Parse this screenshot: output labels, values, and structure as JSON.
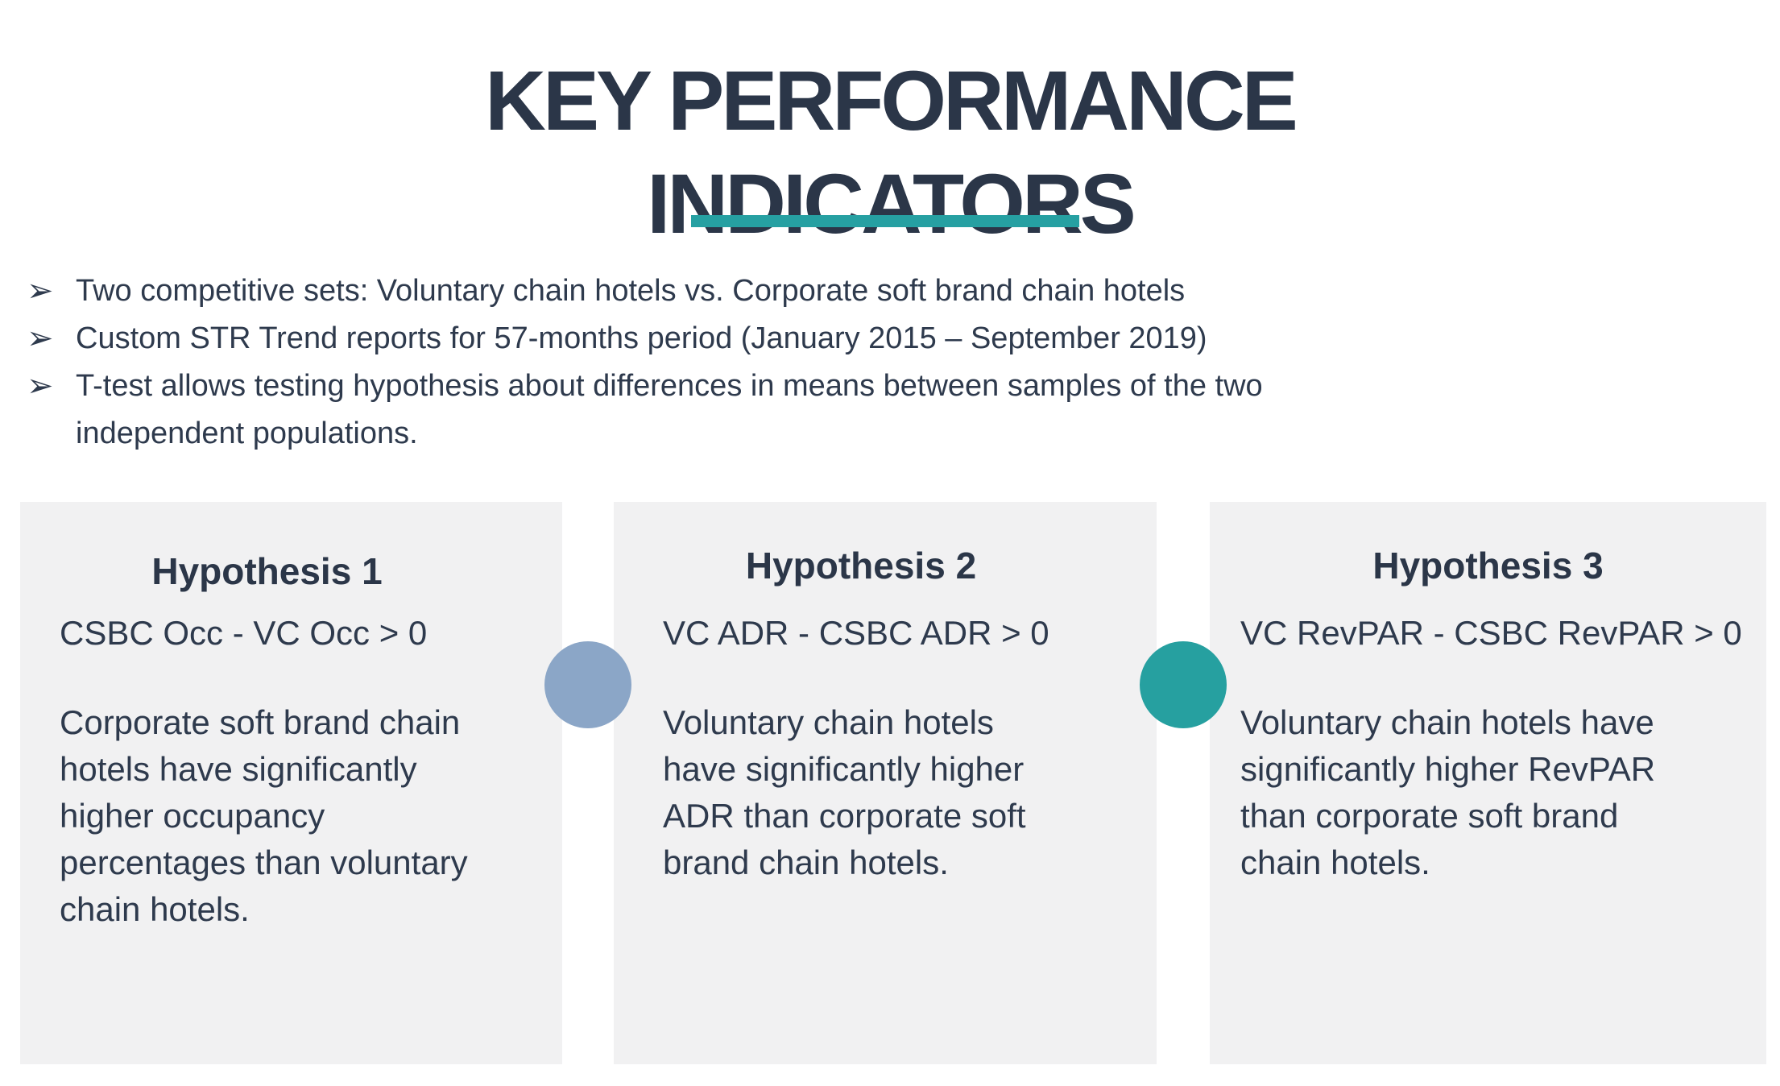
{
  "slide": {
    "title_lines": [
      "KEY PERFORMANCE",
      "INDICATORS"
    ],
    "title_color": "#2B3648",
    "body_text_color": "#2E3A4D",
    "accent_teal": "#26A0A2",
    "box_background": "#F1F1F2"
  },
  "bullets": {
    "marker": "➢",
    "items": [
      {
        "text": "Two competitive sets: Voluntary chain hotels vs. Corporate soft brand chain hotels"
      },
      {
        "text": "Custom STR Trend reports for 57-months period (January 2015 – September 2019)"
      },
      {
        "text": "T-test allows testing hypothesis about differences in means between samples of the two\nindependent populations."
      }
    ]
  },
  "hypotheses": [
    {
      "heading": "Hypothesis 1",
      "formula": "CSBC Occ - VC Occ > 0",
      "description": "Corporate soft brand chain\nhotels have significantly\nhigher occupancy\npercentages than voluntary\nchain hotels."
    },
    {
      "heading": "Hypothesis 2",
      "formula": "VC ADR - CSBC ADR > 0",
      "description": "Voluntary chain hotels\nhave significantly higher\nADR than corporate soft\nbrand chain hotels."
    },
    {
      "heading": "Hypothesis 3",
      "formula": "VC RevPAR - CSBC RevPAR > 0",
      "description": "Voluntary chain hotels have\nsignificantly higher RevPAR\nthan corporate soft brand\nchain hotels."
    }
  ],
  "connectors": [
    {
      "color": "#8BA6C7"
    },
    {
      "color": "#26A0A0"
    }
  ]
}
